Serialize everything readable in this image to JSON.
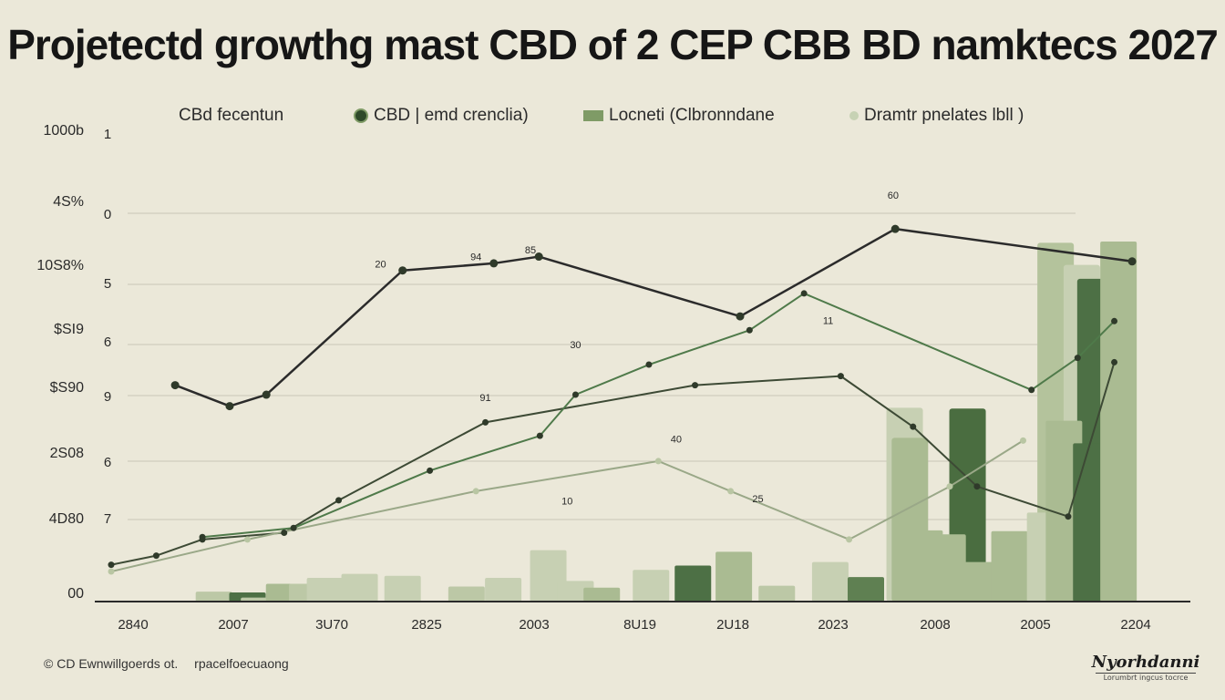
{
  "title": "Projetectd growthg mast CBD of 2 CEP CBB BD namktecs 2027",
  "legend": [
    {
      "label": "CBd fecentun",
      "swatch": "none",
      "color": "#2a2a2a"
    },
    {
      "label": "CBD | emd crenclia)",
      "swatch": "circle",
      "color": "#2f4a2a"
    },
    {
      "label": "Locneti (Clbronndane",
      "swatch": "rect",
      "color": "#7f9b66"
    },
    {
      "label": "Dramtr pnelates lbll )",
      "swatch": "dot",
      "color": "#c7d2b4"
    }
  ],
  "footer": {
    "copyright": "© CD Ewnwillgoerds ot.",
    "source": "rpacelfoecuaong"
  },
  "logo": {
    "name": "Nyorhdanni",
    "tagline": "Lorumbrt ingcus tocrce"
  },
  "chart_data": {
    "type": "line",
    "title": "Projetectd growthg mast CBD of 2 CEP CBB BD namktecs 2027",
    "y_axis_labels": [
      "1000b",
      "4S%",
      "10S8%",
      "$SI9",
      "$S90",
      "2S08",
      "4D80",
      "00"
    ],
    "y_axis_secondary": [
      "1",
      "0",
      "5",
      "6",
      "9",
      "6",
      "7"
    ],
    "x_axis_labels": [
      "2840",
      "2007",
      "3U70",
      "2825",
      "2003",
      "8U19",
      "2U18",
      "2023",
      "2008",
      "2005",
      "2204"
    ],
    "ylim": [
      0,
      100
    ],
    "xlim": [
      0,
      100
    ],
    "data_labels": [
      {
        "text": "60",
        "x": 74.6,
        "y": 100
      },
      {
        "text": "20",
        "x": 25.7,
        "y": 82.6
      },
      {
        "text": "94",
        "x": 34.8,
        "y": 84.4
      },
      {
        "text": "85",
        "x": 40.0,
        "y": 86.2
      },
      {
        "text": "30",
        "x": 44.3,
        "y": 62.2
      },
      {
        "text": "11",
        "x": 68.4,
        "y": 68.3
      },
      {
        "text": "91",
        "x": 35.7,
        "y": 48.8
      },
      {
        "text": "10",
        "x": 43.5,
        "y": 22.7
      },
      {
        "text": "40",
        "x": 53.9,
        "y": 38.4
      },
      {
        "text": "25",
        "x": 61.7,
        "y": 23.3
      }
    ],
    "series": [
      {
        "name": "CBd fecentun",
        "color": "#2b2b2b",
        "x": [
          6.1,
          11.3,
          14.8,
          27.8,
          36.5,
          40.8,
          60.0,
          74.8,
          97.4
        ],
        "y": [
          54.7,
          49.4,
          52.3,
          83.7,
          85.5,
          87.2,
          72.1,
          94.2,
          86.0
        ]
      },
      {
        "name": "CBD | emd crenclia)",
        "color": "#3d4a35",
        "x": [
          0,
          4.3,
          8.7,
          16.5,
          21.7,
          35.7,
          55.7,
          69.6,
          76.5,
          82.6,
          91.3,
          95.7
        ],
        "y": [
          9.3,
          11.6,
          15.7,
          17.4,
          25.6,
          45.3,
          54.7,
          57.0,
          44.2,
          29.1,
          21.5,
          60.5
        ]
      },
      {
        "name": "Locneti (Clbronndane",
        "color": "#4f7a4a",
        "x": [
          8.7,
          17.4,
          30.4,
          40.9,
          44.3,
          51.3,
          60.9,
          66.1,
          87.8,
          92.2,
          95.7
        ],
        "y": [
          16.3,
          18.6,
          33.1,
          41.9,
          52.3,
          59.9,
          68.6,
          77.9,
          53.5,
          61.6,
          70.9
        ]
      },
      {
        "name": "Dramtr pnelates lbll )",
        "color": "#9aa888",
        "x": [
          0,
          13.0,
          34.8,
          52.2,
          59.1,
          70.4,
          80.0,
          87.0
        ],
        "y": [
          7.6,
          15.7,
          27.9,
          35.5,
          27.9,
          15.7,
          29.1,
          40.7
        ]
      }
    ],
    "bars": {
      "name": "Locneti (Clbronndane",
      "x": [
        9.8,
        13.0,
        14.1,
        16.5,
        18.7,
        20.4,
        23.7,
        27.8,
        33.9,
        37.4,
        41.7,
        44.3,
        46.8,
        51.5,
        55.5,
        59.4,
        63.5,
        68.6,
        72.0,
        77.6,
        79.8,
        82.8,
        85.7,
        89.1,
        90.9,
        93.5,
        96.1
      ],
      "heights": [
        2.5,
        2.3,
        1.0,
        4.5,
        4.5,
        6.0,
        7.0,
        6.5,
        3.8,
        6.0,
        13.0,
        5.2,
        3.5,
        8.0,
        9.1,
        12.6,
        4.0,
        10.0,
        6.2,
        18.0,
        17.0,
        10.0,
        17.8,
        22.5,
        45.7,
        40.0,
        91.0
      ],
      "colors": [
        "#bcc8a6",
        "#4d7045",
        "#bcc8a6",
        "#aabb92",
        "#bcc8a6",
        "#c7d0b3",
        "#c7d0b3",
        "#c7d0b3",
        "#bcc8a6",
        "#c7d0b3",
        "#c7d0b3",
        "#c7d0b3",
        "#aabb92",
        "#c7d0b3",
        "#4d7045",
        "#aabb92",
        "#bcc8a6",
        "#c7d0b3",
        "#5f8052",
        "#aabb92",
        "#aabb92",
        "#aabb92",
        "#aabb92",
        "#c7d0b3",
        "#aabb92",
        "#4d7045",
        "#aabb92"
      ]
    },
    "tall_bars": [
      {
        "x": 75.7,
        "height": 49.0,
        "color": "#c7d0b3"
      },
      {
        "x": 76.2,
        "height": 41.4,
        "color": "#aabb92"
      },
      {
        "x": 81.7,
        "height": 48.8,
        "color": "#4a6d40"
      },
      {
        "x": 90.1,
        "height": 90.7,
        "color": "#b4c39c"
      },
      {
        "x": 92.6,
        "height": 85.1,
        "color": "#c7d0b3"
      },
      {
        "x": 93.9,
        "height": 81.6,
        "color": "#4d7045"
      }
    ]
  }
}
